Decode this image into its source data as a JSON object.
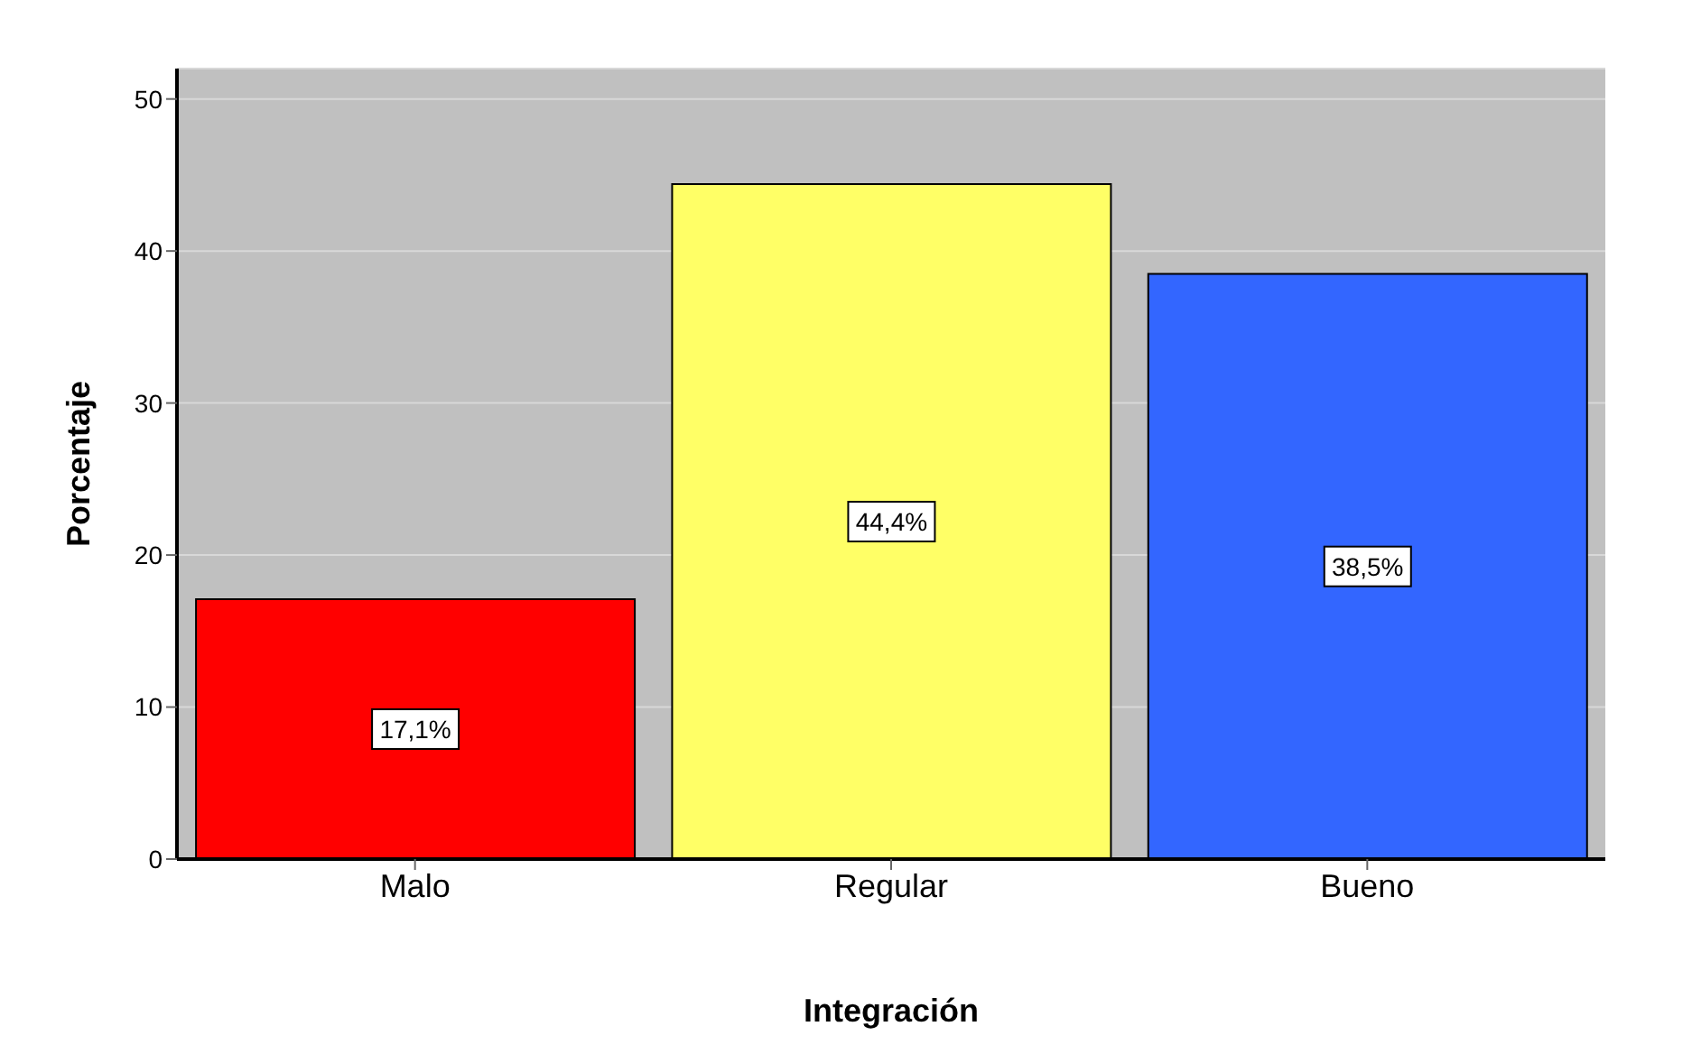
{
  "chart_data": {
    "type": "bar",
    "xlabel": "Integración",
    "ylabel": "Porcentaje",
    "categories": [
      "Malo",
      "Regular",
      "Bueno"
    ],
    "values": [
      17.1,
      44.4,
      38.5
    ],
    "colors": [
      "#ff0000",
      "#ffff66",
      "#3366ff"
    ],
    "value_labels": [
      "17,1%",
      "44,4%",
      "38,5%"
    ],
    "ylim": [
      0,
      52
    ],
    "yticks": [
      0,
      10,
      20,
      30,
      40,
      50
    ],
    "grid": "y"
  }
}
